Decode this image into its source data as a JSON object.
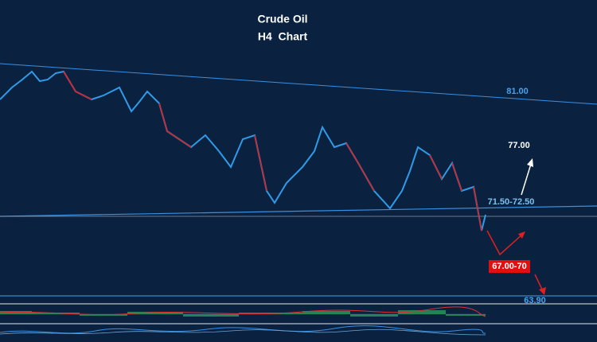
{
  "title": "Crude Oil",
  "subtitle": "H4  Chart",
  "levels": {
    "resistance": "81.00",
    "target_up": "77.00",
    "zone": "71.50-72.50",
    "target_down": "67.00-70",
    "support": "63.90"
  }
}
